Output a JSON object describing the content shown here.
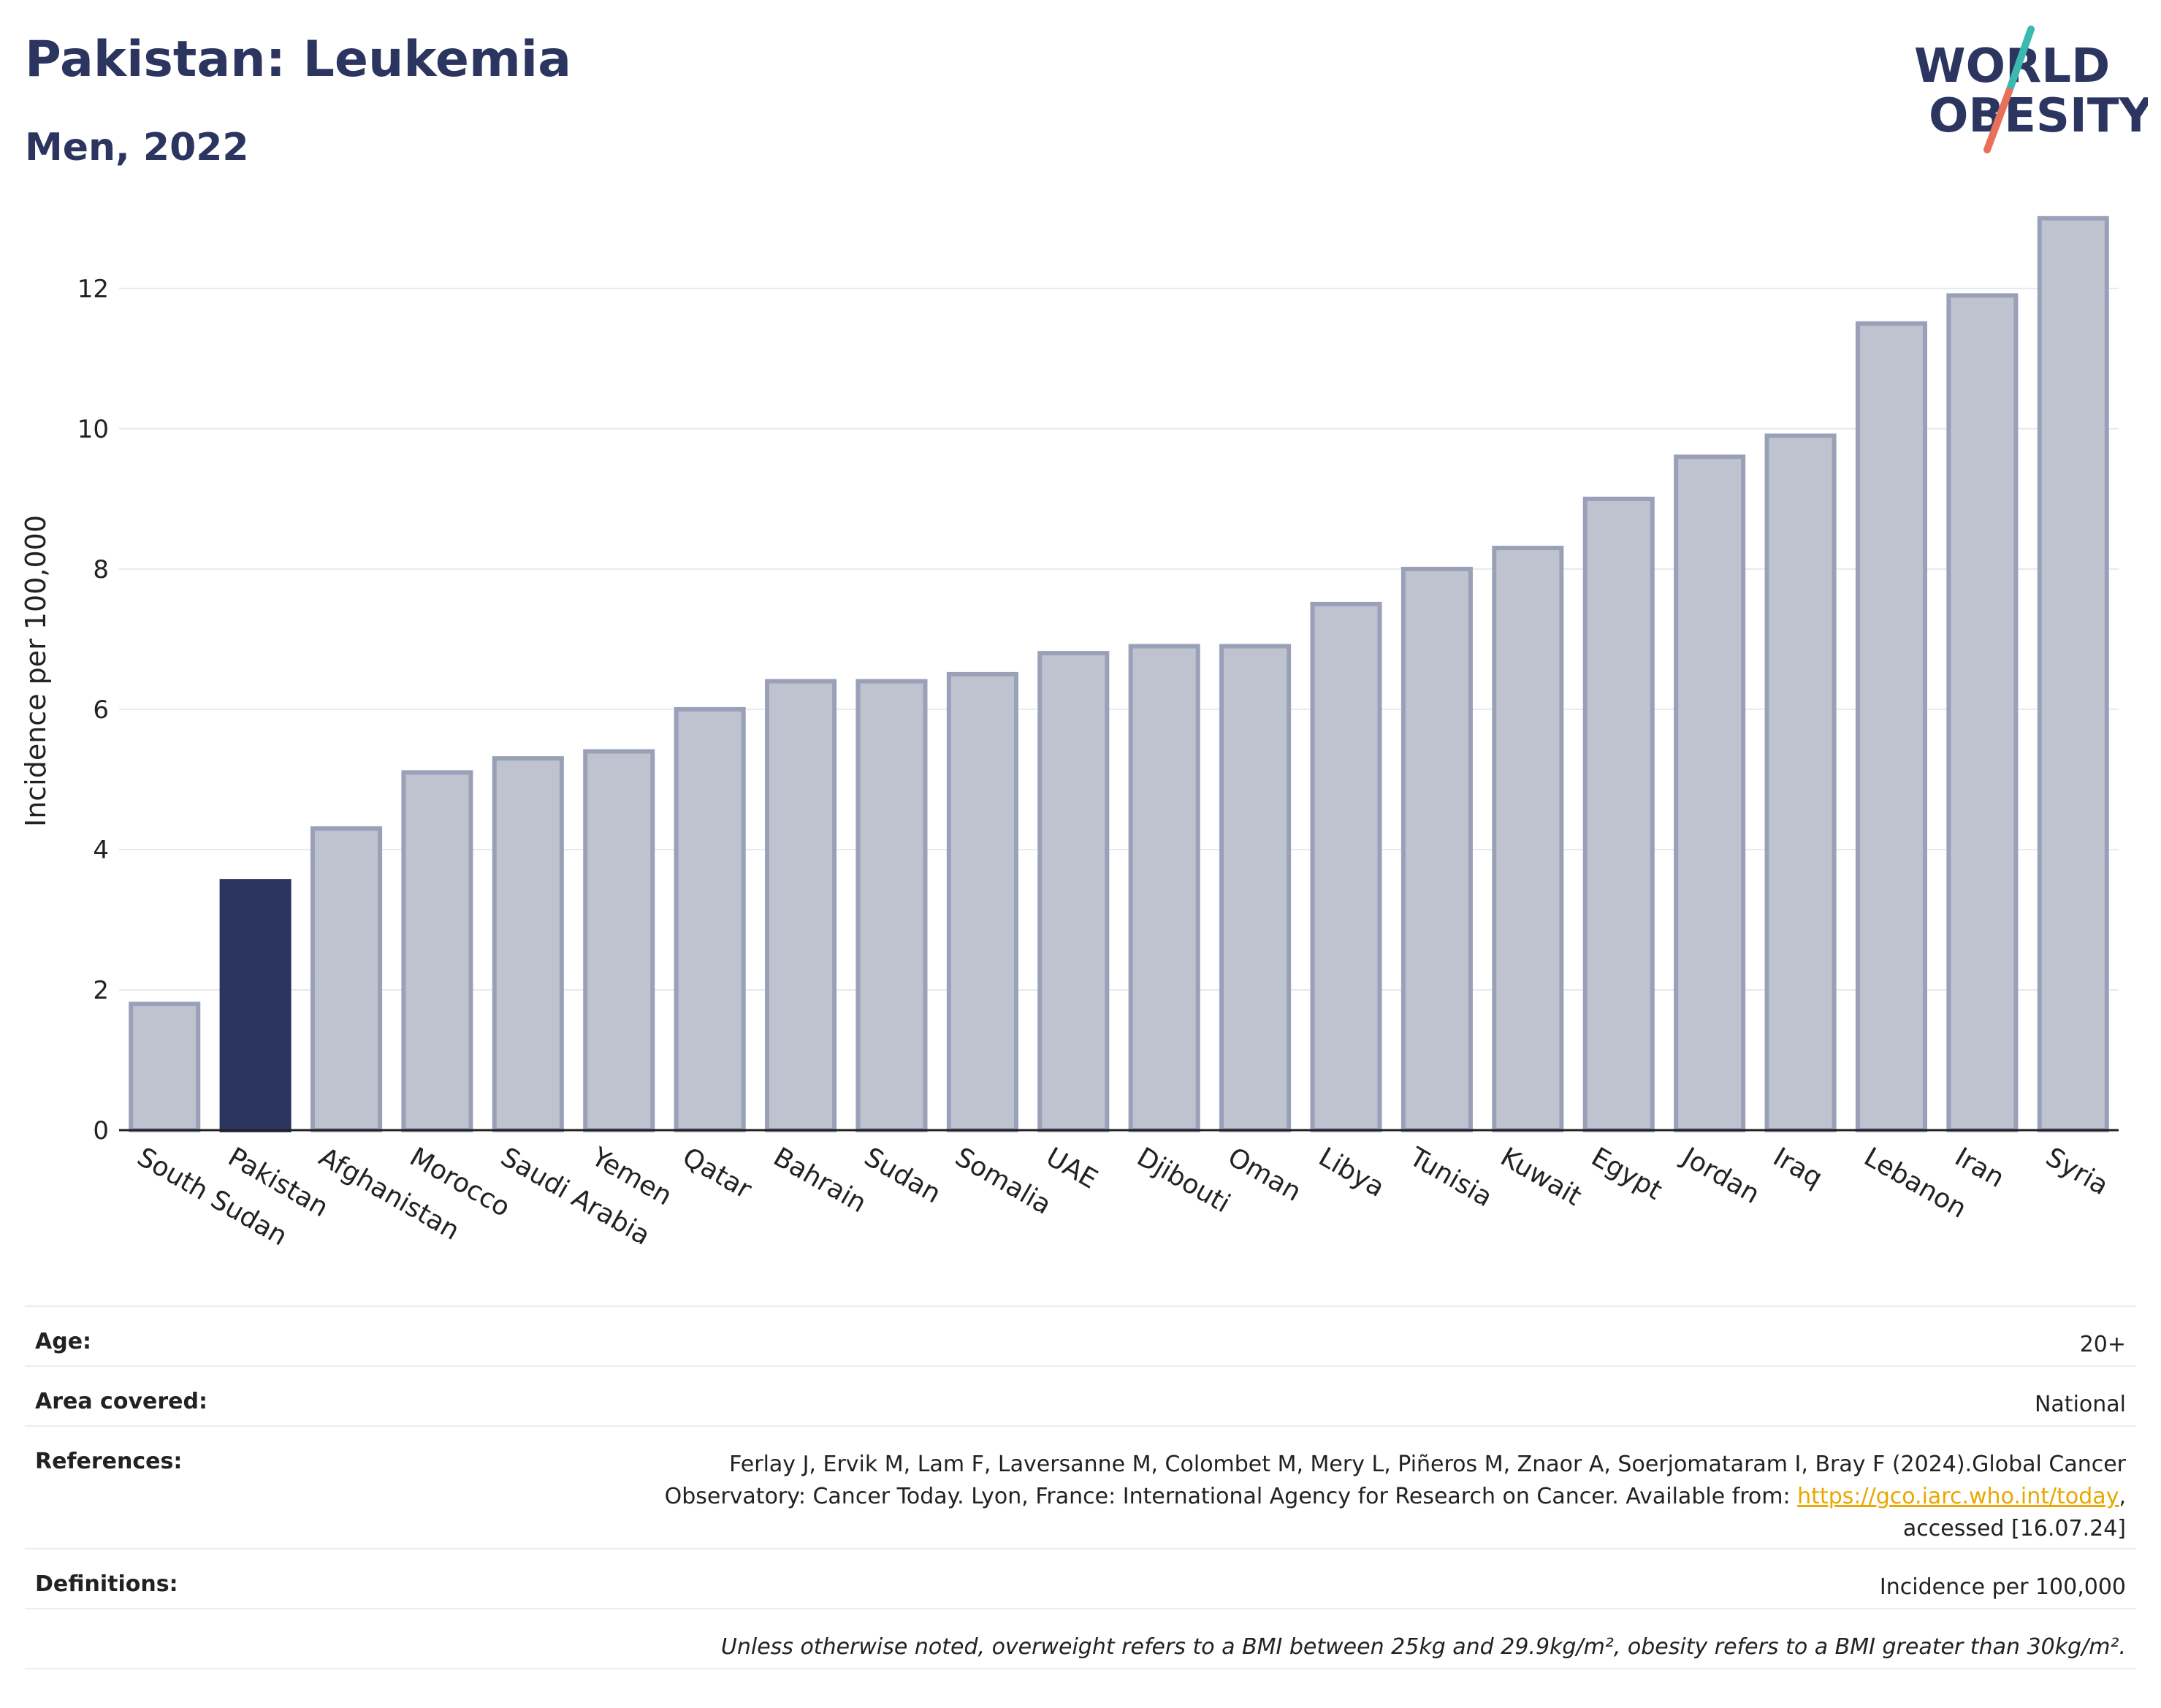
{
  "header": {
    "title": "Pakistan: Leukemia",
    "subtitle": "Men, 2022"
  },
  "logo": {
    "line1": "WORLD",
    "line2": "OBESITY",
    "slash_colors": [
      "#3bb8b0",
      "#e8705a"
    ],
    "text_color": "#2b3560"
  },
  "colors": {
    "highlight": "#2b3560",
    "bar": "#bfc3d0",
    "bar_border": "#9aa0b8"
  },
  "chart_data": {
    "type": "bar",
    "title": "Pakistan: Leukemia",
    "subtitle": "Men, 2022",
    "ylabel": "Incidence per 100,000",
    "xlabel": "",
    "ylim": [
      0,
      13.3
    ],
    "yticks": [
      0,
      2,
      4,
      6,
      8,
      10,
      12
    ],
    "grid": true,
    "highlight": "Pakistan",
    "categories": [
      "South Sudan",
      "Pakistan",
      "Afghanistan",
      "Morocco",
      "Saudi Arabia",
      "Yemen",
      "Qatar",
      "Bahrain",
      "Sudan",
      "Somalia",
      "UAE",
      "Djibouti",
      "Oman",
      "Libya",
      "Tunisia",
      "Kuwait",
      "Egypt",
      "Jordan",
      "Iraq",
      "Lebanon",
      "Iran",
      "Syria"
    ],
    "values": [
      1.8,
      3.55,
      4.3,
      5.1,
      5.3,
      5.4,
      6.0,
      6.4,
      6.4,
      6.5,
      6.8,
      6.9,
      6.9,
      7.5,
      8.0,
      8.3,
      9.0,
      9.6,
      9.9,
      11.5,
      11.9,
      13.0
    ]
  },
  "info": {
    "age": {
      "label": "Age:",
      "value": "20+"
    },
    "area": {
      "label": "Area covered:",
      "value": "National"
    },
    "references": {
      "label": "References:",
      "line1": "Ferlay J, Ervik M, Lam F, Laversanne M, Colombet M, Mery L, Piñeros M, Znaor A, Soerjomataram I, Bray F (2024).Global Cancer",
      "line2_pre": "Observatory: Cancer Today. Lyon, France: International Agency for Research on Cancer. Available from: ",
      "link": "https://gco.iarc.who.int/today",
      "line2_post": ",",
      "line3": "accessed [16.07.24]"
    },
    "definitions": {
      "label": "Definitions:",
      "value": "Incidence per 100,000"
    },
    "note": "Unless otherwise noted, overweight refers to a BMI between 25kg and 29.9kg/m², obesity refers to a BMI greater than 30kg/m²."
  }
}
